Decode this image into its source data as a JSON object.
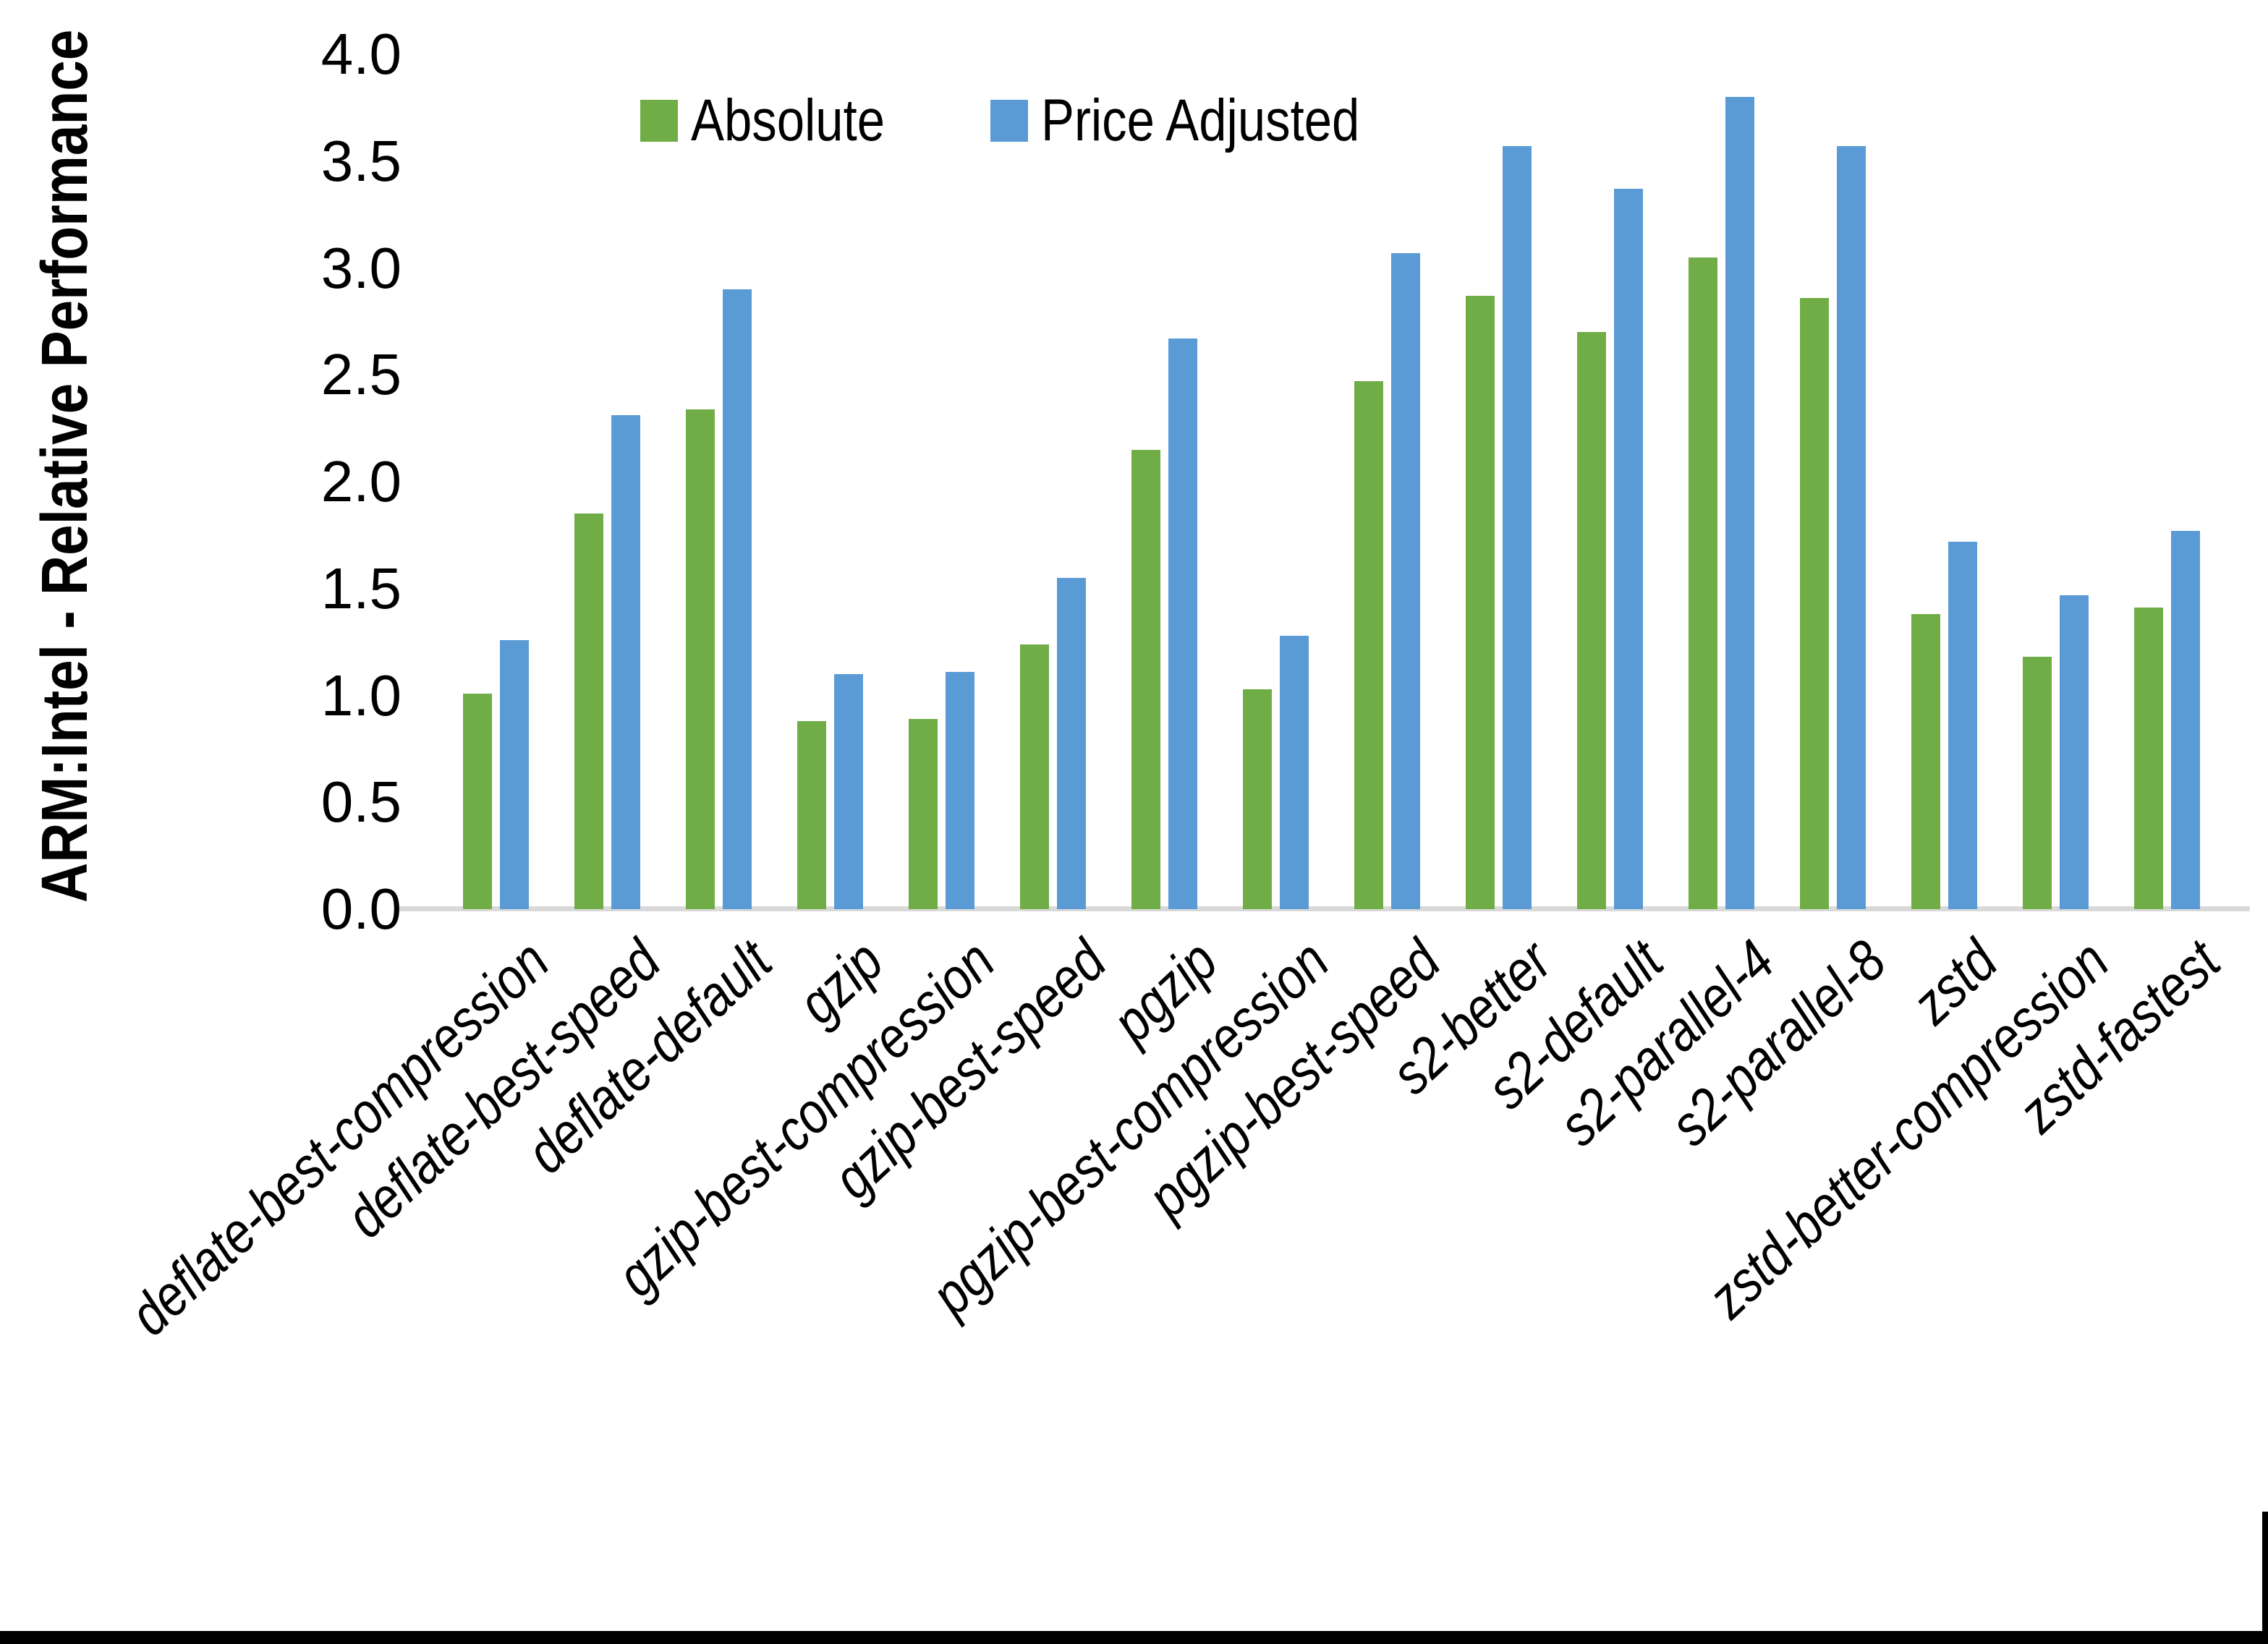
{
  "chart_data": {
    "type": "bar",
    "title": "",
    "ylabel": "ARM:Intel - Relative Performance",
    "xlabel": "",
    "ylim": [
      0.0,
      4.0
    ],
    "ytick_step": 0.5,
    "yticks": [
      "0.0",
      "0.5",
      "1.0",
      "1.5",
      "2.0",
      "2.5",
      "3.0",
      "3.5",
      "4.0"
    ],
    "grid": false,
    "legend_position": "top-center-inside",
    "categories": [
      "deflate-best-compression",
      "deflate-best-speed",
      "deflate-default",
      "gzip",
      "gzip-best-compression",
      "gzip-best-speed",
      "pgzip",
      "pgzip-best-compression",
      "pgzip-best-speed",
      "s2-better",
      "s2-default",
      "s2-parallel-4",
      "s2-parallel-8",
      "zstd",
      "zstd-better-compression",
      "zstd-fastest"
    ],
    "series": [
      {
        "name": "Absolute",
        "color": "#70AD47",
        "values": [
          1.01,
          1.85,
          2.34,
          0.88,
          0.89,
          1.24,
          2.15,
          1.03,
          2.47,
          2.87,
          2.7,
          3.05,
          2.86,
          1.38,
          1.18,
          1.41
        ]
      },
      {
        "name": "Price Adjusted",
        "color": "#5B9BD5",
        "values": [
          1.26,
          2.31,
          2.9,
          1.1,
          1.11,
          1.55,
          2.67,
          1.28,
          3.07,
          3.57,
          3.37,
          3.8,
          3.57,
          1.72,
          1.47,
          1.77
        ]
      }
    ],
    "axis_line_color": "#D9D9D9",
    "text_color": "#000000"
  },
  "frame": {
    "bottom_edge_color": "#000000",
    "right_edge_color": "#000000"
  }
}
